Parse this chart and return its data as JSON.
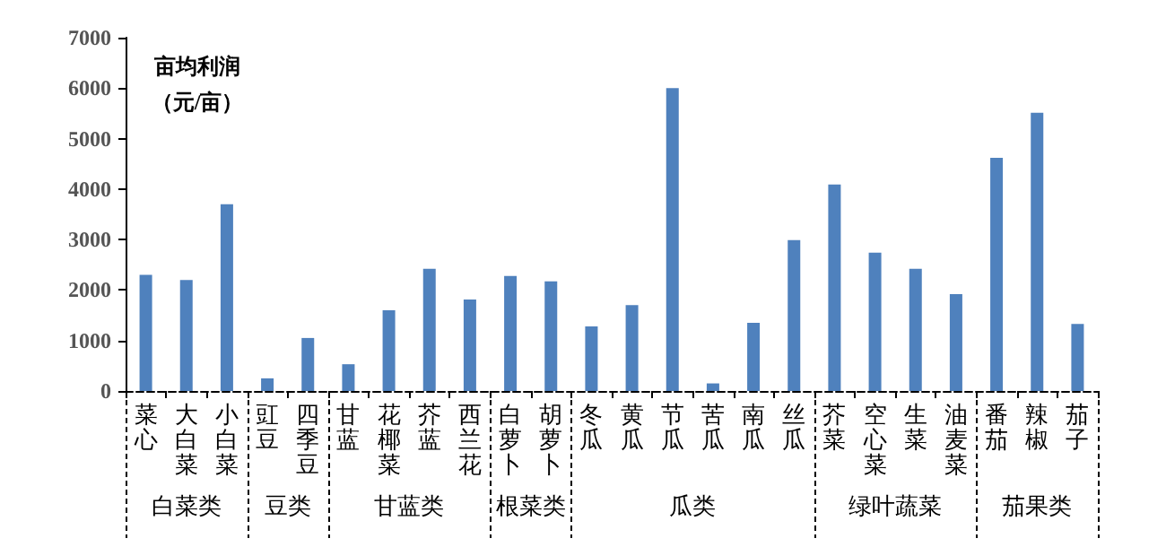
{
  "chart_data": {
    "type": "bar",
    "ylabel": "亩均利润（元/亩）",
    "categories": [
      "菜心",
      "大白菜",
      "小白菜",
      "豇豆",
      "四季豆",
      "甘蓝",
      "花椰菜",
      "芥蓝",
      "西兰花",
      "白萝卜",
      "胡萝卜",
      "冬瓜",
      "黄瓜",
      "节瓜",
      "苦瓜",
      "南瓜",
      "丝瓜",
      "芥菜",
      "空心菜",
      "生菜",
      "油麦菜",
      "番茄",
      "辣椒",
      "茄子"
    ],
    "values": [
      2300,
      2200,
      3700,
      250,
      1050,
      530,
      1600,
      2420,
      1810,
      2280,
      2170,
      1280,
      1700,
      6000,
      150,
      1350,
      2990,
      4090,
      2740,
      2420,
      1920,
      4620,
      5510,
      1330
    ],
    "color": "#4f81bd",
    "ylim": [
      0,
      7000
    ],
    "yticks": [
      0,
      1000,
      2000,
      3000,
      4000,
      5000,
      6000,
      7000
    ],
    "grid": false,
    "annotations": [
      "白菜类",
      "豆类",
      "甘蓝类",
      "根菜类",
      "瓜类",
      "绿叶蔬菜",
      "茄果类"
    ]
  }
}
